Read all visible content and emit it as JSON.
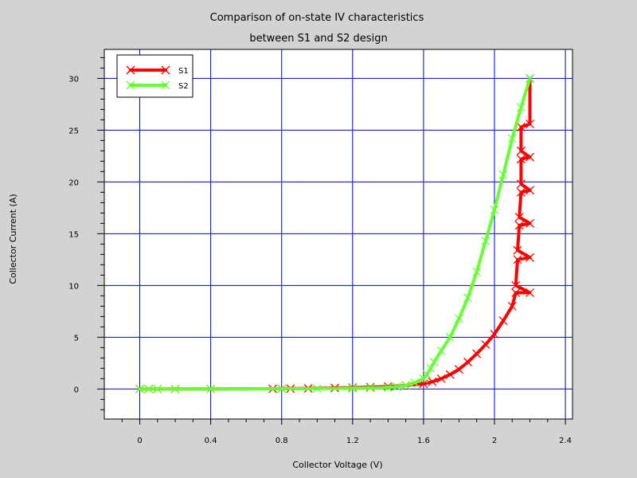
{
  "chart_data": {
    "type": "line",
    "title": "Comparison of on-state IV characteristics",
    "subtitle": "between S1 and S2 design",
    "xlabel": "Collector Voltage (V)",
    "ylabel": "Collector Current (A)",
    "xlim": [
      -0.2,
      2.44
    ],
    "ylim": [
      -2.9,
      32.8
    ],
    "xticks": [
      {
        "value": 0,
        "label": "0"
      },
      {
        "value": 0.4,
        "label": "0.4"
      },
      {
        "value": 0.8,
        "label": "0.8"
      },
      {
        "value": 1.2,
        "label": "1.2"
      },
      {
        "value": 1.6,
        "label": "1.6"
      },
      {
        "value": 2.0,
        "label": "2"
      },
      {
        "value": 2.4,
        "label": "2.4"
      }
    ],
    "yticks": [
      {
        "value": 0,
        "label": "0"
      },
      {
        "value": 5,
        "label": "5"
      },
      {
        "value": 10,
        "label": "10"
      },
      {
        "value": 15,
        "label": "15"
      },
      {
        "value": 20,
        "label": "20"
      },
      {
        "value": 25,
        "label": "25"
      },
      {
        "value": 30,
        "label": "30"
      }
    ],
    "grid": true,
    "legend_position": "top-left",
    "series": [
      {
        "name": "S1",
        "color": "#ff0000",
        "marker": "x",
        "x": [
          0,
          0.05,
          0.1,
          0.2,
          0.4,
          0.75,
          0.8,
          0.85,
          0.95,
          1.1,
          1.2,
          1.3,
          1.4,
          1.5,
          1.6,
          1.65,
          1.7,
          1.75,
          1.8,
          1.85,
          1.9,
          1.95,
          2.0,
          2.05,
          2.1,
          2.12,
          2.2,
          2.12,
          2.13,
          2.2,
          2.13,
          2.14,
          2.2,
          2.14,
          2.15,
          2.2,
          2.15,
          2.15,
          2.2,
          2.15,
          2.15,
          2.2,
          2.2
        ],
        "y": [
          0,
          0,
          0,
          0,
          0,
          0.02,
          0.03,
          0.04,
          0.06,
          0.1,
          0.13,
          0.18,
          0.25,
          0.35,
          0.5,
          0.7,
          1.0,
          1.4,
          1.9,
          2.6,
          3.4,
          4.3,
          5.3,
          6.6,
          8.0,
          9.3,
          9.3,
          10.0,
          12.5,
          12.7,
          13.4,
          15.8,
          16.0,
          16.6,
          19.0,
          19.2,
          19.8,
          22.2,
          22.4,
          23.0,
          25.3,
          25.6,
          30.0
        ]
      },
      {
        "name": "S2",
        "color": "#66ff33",
        "marker": "x",
        "x": [
          0,
          0.05,
          0.1,
          0.2,
          0.4,
          0.8,
          1.0,
          1.2,
          1.3,
          1.4,
          1.45,
          1.5,
          1.55,
          1.6,
          1.62,
          1.64,
          1.66,
          1.7,
          1.75,
          1.8,
          1.85,
          1.9,
          1.95,
          2.0,
          2.05,
          2.1,
          2.15,
          2.2
        ],
        "y": [
          0,
          0,
          0,
          0,
          0,
          0.02,
          0.04,
          0.07,
          0.1,
          0.15,
          0.22,
          0.35,
          0.6,
          1.0,
          1.4,
          2.0,
          2.6,
          3.7,
          5.0,
          6.8,
          8.8,
          11.3,
          14.3,
          17.3,
          20.7,
          24.2,
          27.2,
          30.0
        ]
      }
    ]
  }
}
